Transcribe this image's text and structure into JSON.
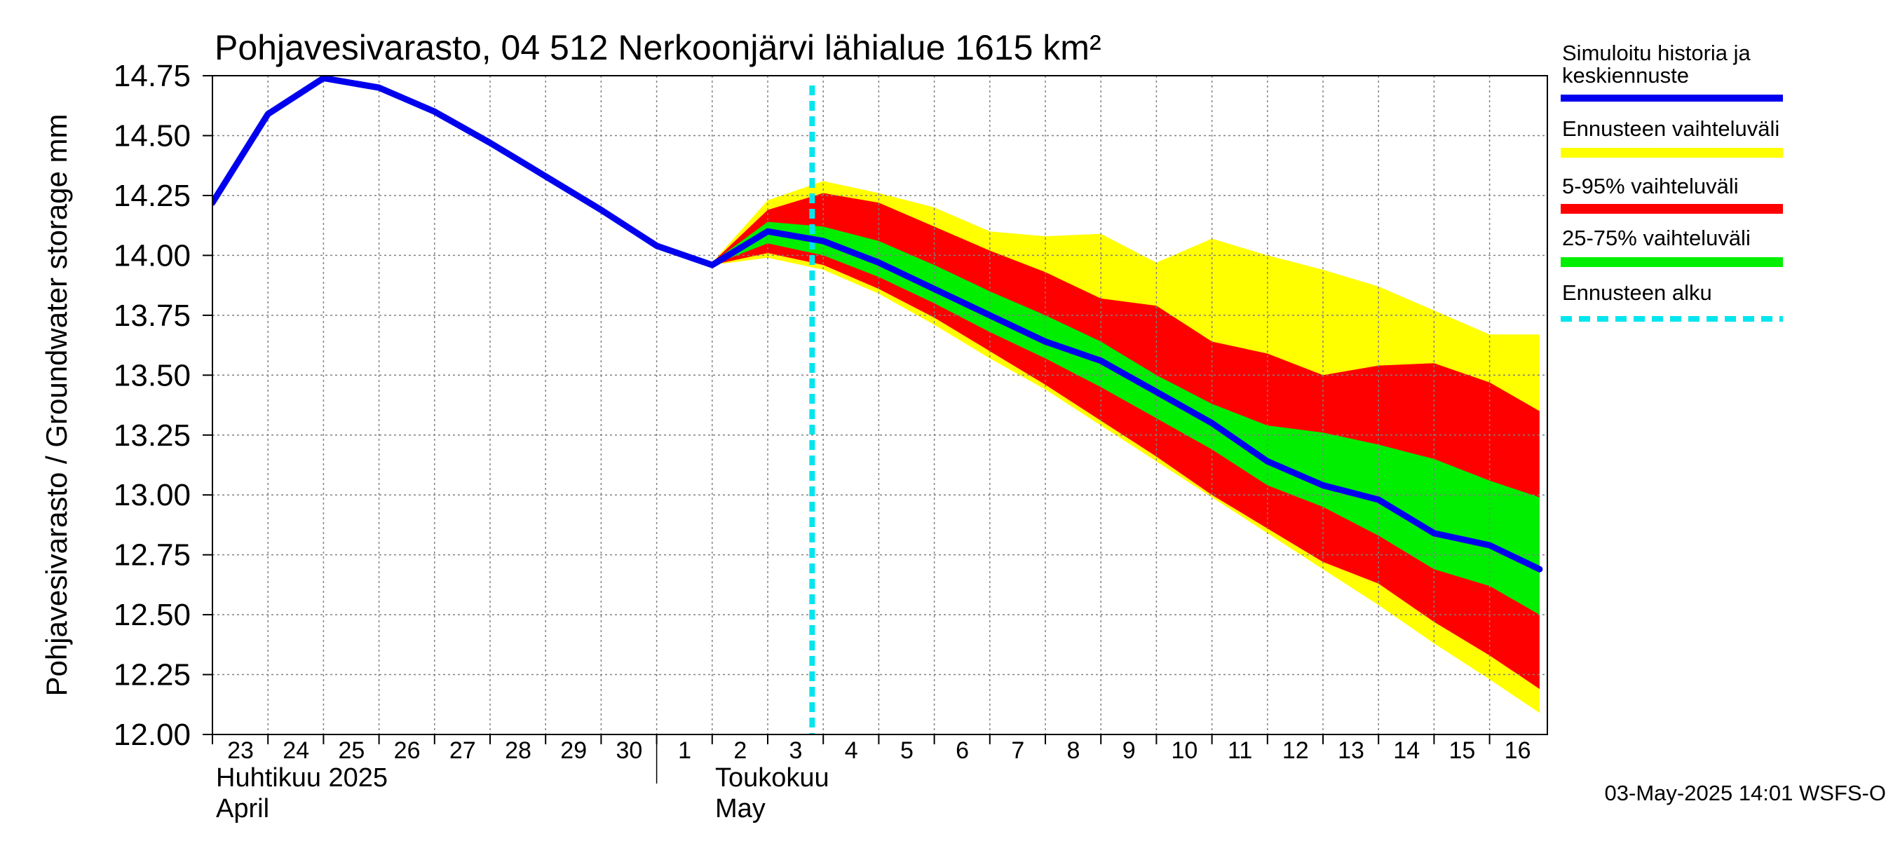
{
  "chart_data": {
    "type": "area",
    "title": "Pohjavesivarasto, 04 512 Nerkoonjärvi lähialue 1615 km²",
    "ylabel": "Pohjavesivarasto / Groundwater storage   mm",
    "ylim": [
      12.0,
      14.75
    ],
    "yticks": [
      "12.00",
      "12.25",
      "12.50",
      "12.75",
      "13.00",
      "13.25",
      "13.50",
      "13.75",
      "14.00",
      "14.25",
      "14.50",
      "14.75"
    ],
    "x_days": [
      "23",
      "24",
      "25",
      "26",
      "27",
      "28",
      "29",
      "30",
      "1",
      "2",
      "3",
      "4",
      "5",
      "6",
      "7",
      "8",
      "9",
      "10",
      "11",
      "12",
      "13",
      "14",
      "15",
      "16"
    ],
    "month_labels": {
      "april_fi": "Huhtikuu  2025",
      "april_en": "April",
      "may_fi": "Toukokuu",
      "may_en": "May"
    },
    "grid": true,
    "legend_position": "right",
    "legend": {
      "history": "Simuloitu historia ja keskiennuste",
      "range": "Ennusteen vaihteluväli",
      "p5_95": "5-95% vaihteluväli",
      "p25_75": "25-75% vaihteluväli",
      "forecast_start": "Ennusteen alku"
    },
    "forecast_start_day": 10.8,
    "history": {
      "x": [
        0,
        1,
        2,
        3,
        4,
        5,
        6,
        7,
        8,
        9,
        10,
        11,
        12,
        13,
        14,
        15,
        16,
        17,
        18,
        19,
        20,
        21,
        22,
        23,
        23.9
      ],
      "y": [
        14.22,
        14.59,
        14.74,
        14.7,
        14.6,
        14.47,
        14.33,
        14.19,
        14.04,
        13.96,
        14.1,
        14.06,
        13.97,
        13.86,
        13.75,
        13.64,
        13.56,
        13.43,
        13.3,
        13.14,
        13.04,
        12.98,
        12.84,
        12.79,
        12.69
      ]
    },
    "bands_x": [
      9,
      10,
      11,
      12,
      13,
      14,
      15,
      16,
      17,
      18,
      19,
      20,
      21,
      22,
      23,
      23.9
    ],
    "range_band": {
      "upper": [
        13.97,
        14.23,
        14.31,
        14.26,
        14.2,
        14.1,
        14.08,
        14.09,
        13.97,
        14.07,
        14.0,
        13.94,
        13.87,
        13.77,
        13.67,
        13.67
      ],
      "lower": [
        13.96,
        13.99,
        13.94,
        13.84,
        13.71,
        13.57,
        13.44,
        13.29,
        13.14,
        12.99,
        12.84,
        12.69,
        12.54,
        12.38,
        12.23,
        12.09
      ]
    },
    "p5_95_band": {
      "upper": [
        13.97,
        14.19,
        14.26,
        14.22,
        14.12,
        14.02,
        13.93,
        13.82,
        13.79,
        13.64,
        13.59,
        13.5,
        13.54,
        13.55,
        13.47,
        13.35
      ],
      "lower": [
        13.96,
        14.01,
        13.96,
        13.86,
        13.74,
        13.6,
        13.46,
        13.31,
        13.16,
        13.0,
        12.86,
        12.72,
        12.63,
        12.47,
        12.33,
        12.19
      ]
    },
    "p25_75_band": {
      "upper": [
        13.97,
        14.14,
        14.12,
        14.06,
        13.96,
        13.85,
        13.75,
        13.64,
        13.5,
        13.38,
        13.29,
        13.26,
        13.21,
        13.15,
        13.06,
        12.99
      ],
      "lower": [
        13.96,
        14.05,
        14.0,
        13.91,
        13.8,
        13.68,
        13.57,
        13.45,
        13.32,
        13.19,
        13.04,
        12.95,
        12.83,
        12.69,
        12.62,
        12.5
      ]
    },
    "colors": {
      "history": "#0000ee",
      "range": "#ffff00",
      "p5_95": "#ff0000",
      "p25_75": "#00ee00",
      "forecast_start": "#00e5ee",
      "grid": "#808080"
    }
  },
  "footer": {
    "timestamp": "03-May-2025 14:01 WSFS-O"
  }
}
